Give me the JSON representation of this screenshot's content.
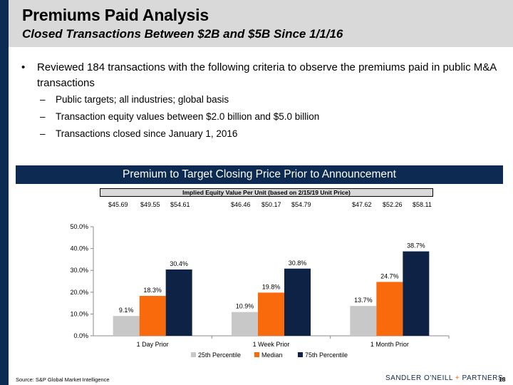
{
  "header": {
    "title": "Premiums Paid Analysis",
    "subtitle": "Closed Transactions Between $2B and $5B Since 1/1/16"
  },
  "bullets": {
    "main": "Reviewed 184 transactions with the following criteria to observe the premiums paid in public M&A transactions",
    "sub": [
      "Public targets; all industries; global basis",
      "Transaction equity values between $2.0 billion and $5.0 billion",
      "Transactions closed since January 1, 2016"
    ],
    "bullet_glyph": "•",
    "sub_glyph": "–"
  },
  "banner": "Premium to Target Closing Price Prior to Announcement",
  "equity_value": {
    "title": "Implied Equity Value Per Unit (based on 2/15/19 Unit Price)",
    "groups": [
      [
        "$45.69",
        "$49.55",
        "$54.61"
      ],
      [
        "$46.46",
        "$50.17",
        "$54.79"
      ],
      [
        "$47.62",
        "$52.26",
        "$58.11"
      ]
    ]
  },
  "chart_data": {
    "type": "bar",
    "categories": [
      "1 Day Prior",
      "1 Week Prior",
      "1 Month Prior"
    ],
    "series": [
      {
        "name": "25th Percentile",
        "values": [
          9.1,
          10.9,
          13.7
        ],
        "labels": [
          "9.1%",
          "10.9%",
          "13.7%"
        ],
        "color": "#c8c8c8"
      },
      {
        "name": "Median",
        "values": [
          18.3,
          19.8,
          24.7
        ],
        "labels": [
          "18.3%",
          "19.8%",
          "24.7%"
        ],
        "color": "#f96a0d"
      },
      {
        "name": "75th Percentile",
        "values": [
          30.4,
          30.8,
          38.7
        ],
        "labels": [
          "30.4%",
          "30.8%",
          "38.7%"
        ],
        "color": "#0d2244"
      }
    ],
    "y_ticks": [
      "0.0%",
      "10.0%",
      "20.0%",
      "30.0%",
      "40.0%",
      "50.0%"
    ],
    "ylim": [
      0,
      50
    ],
    "title": "",
    "xlabel": "",
    "ylabel": "",
    "legend": "bottom"
  },
  "footer": {
    "source": "Source: S&P Global Market Intelligence",
    "logo_left": "SANDLER O'NEILL",
    "logo_plus": "+",
    "logo_right": "PARTNERS",
    "page": "18"
  }
}
